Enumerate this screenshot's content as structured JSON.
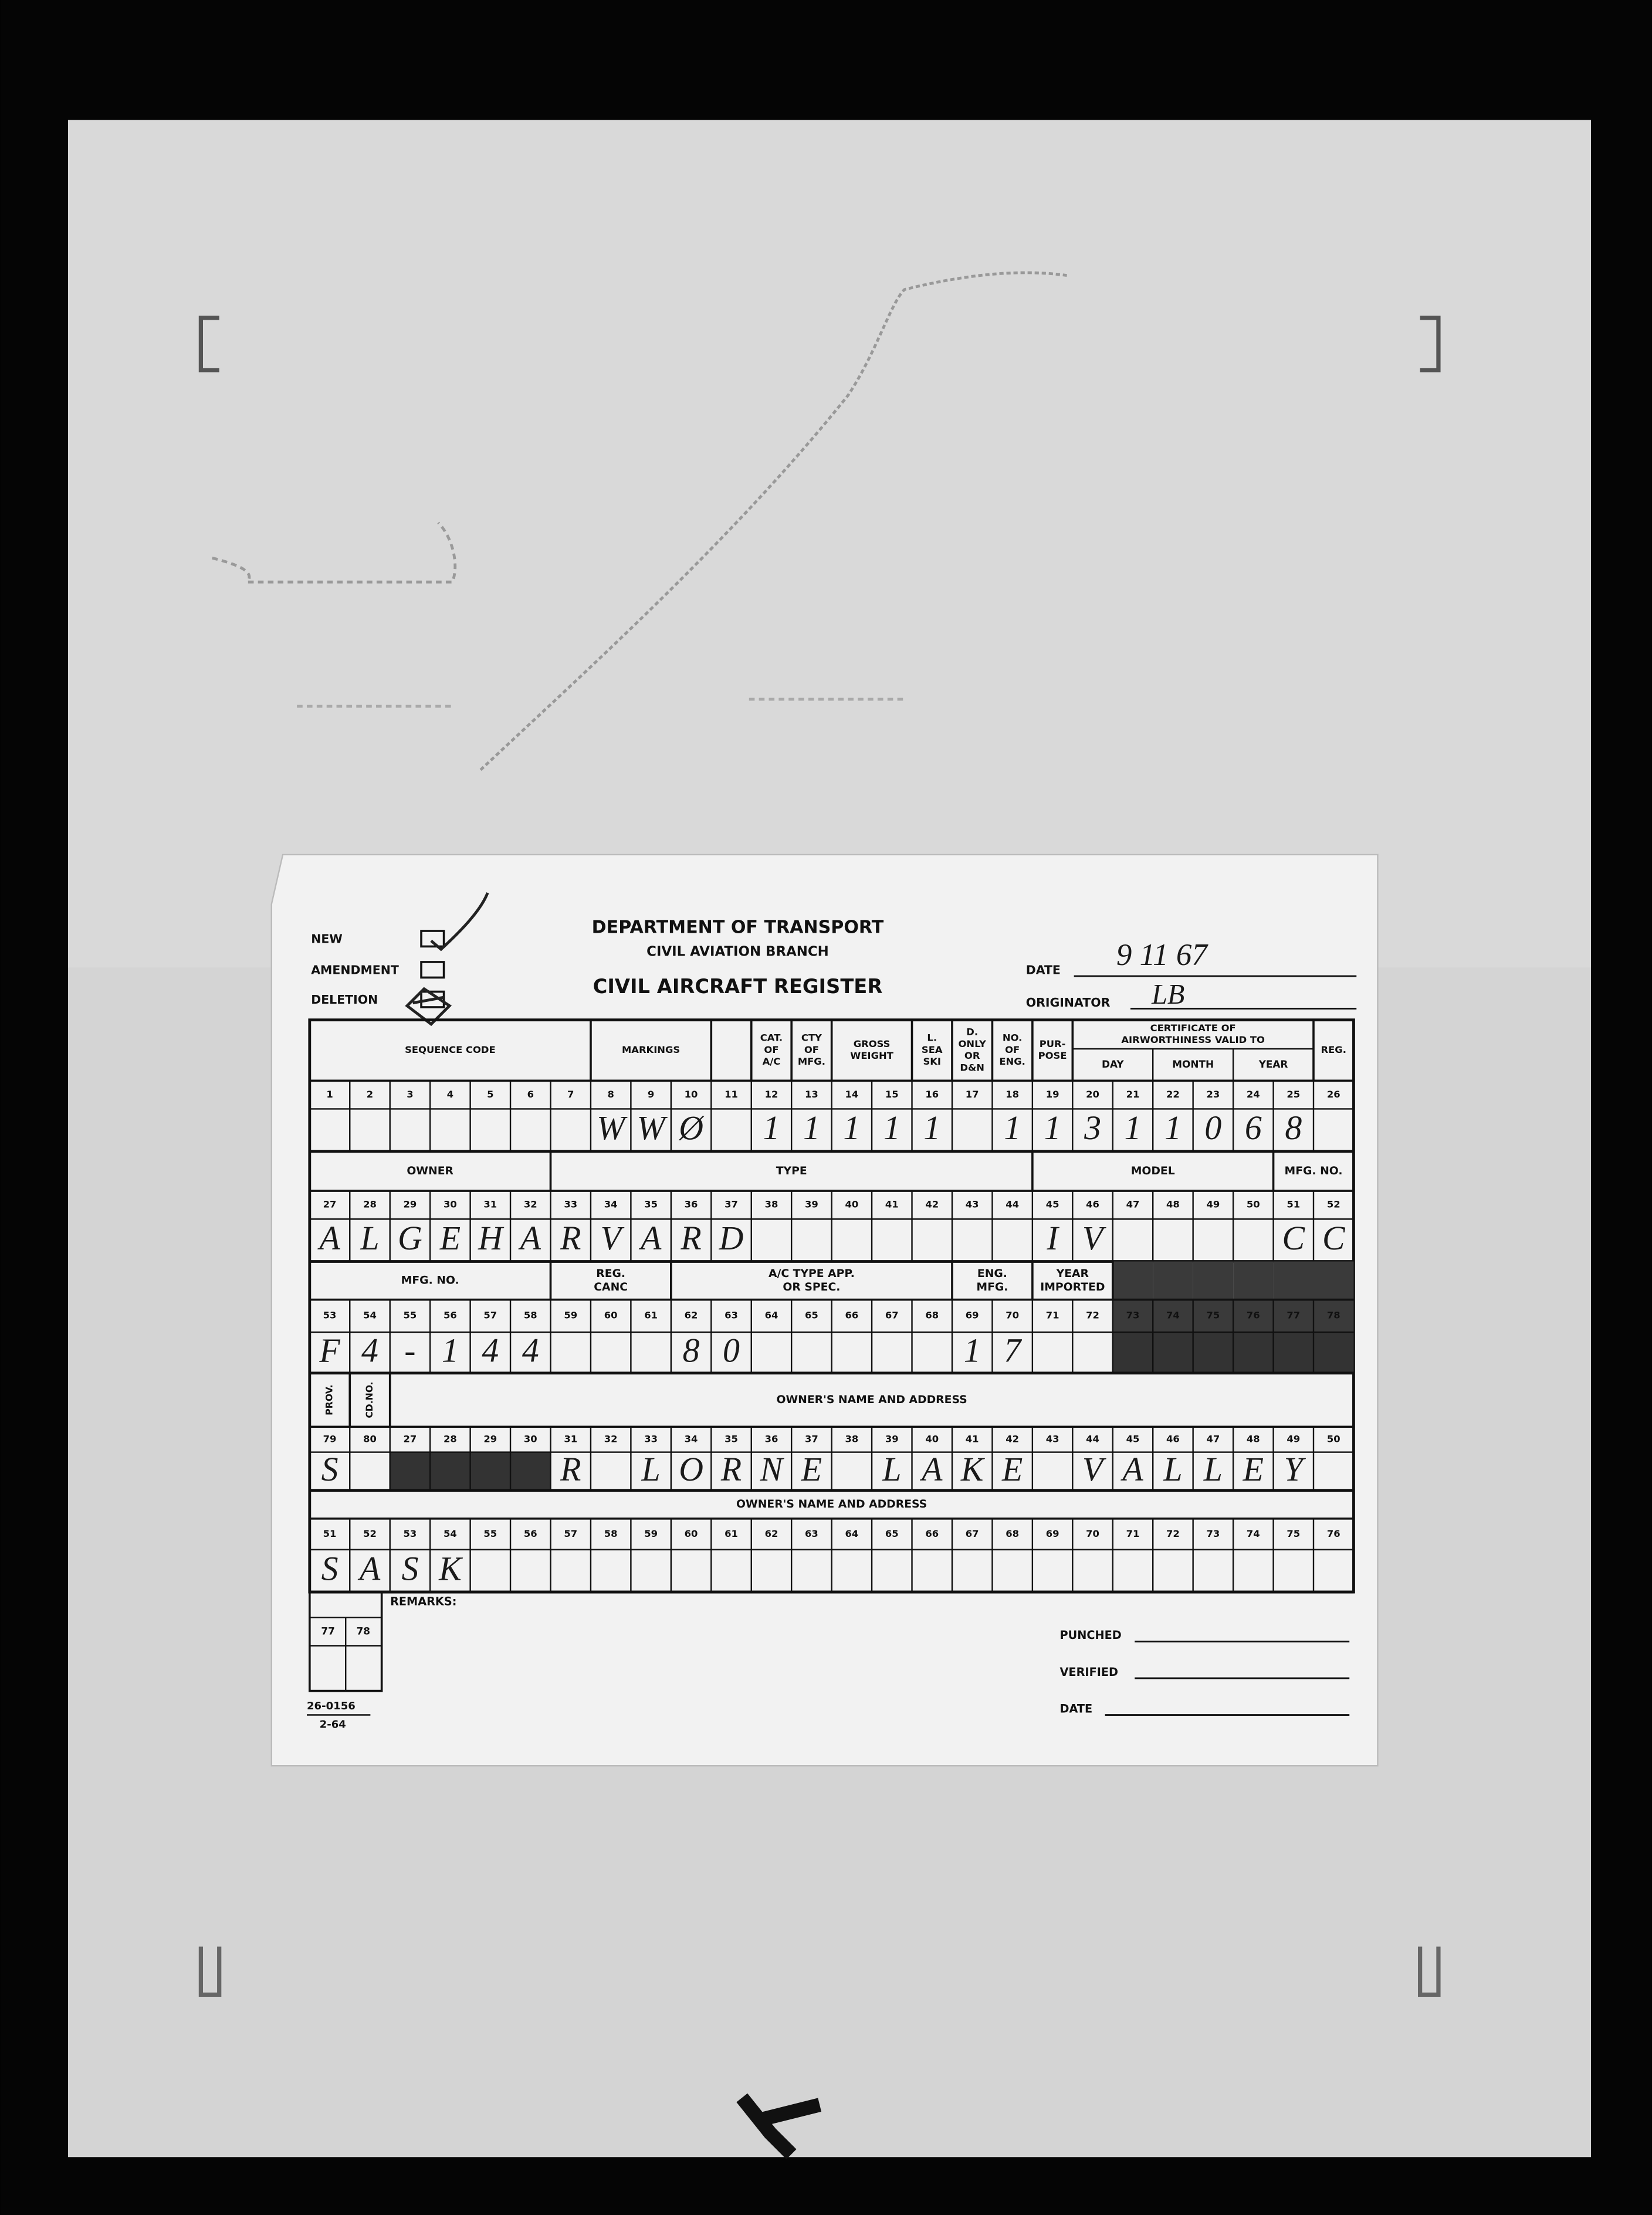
{
  "form": {
    "checkboxes": [
      "NEW",
      "AMENDMENT",
      "DELETION"
    ],
    "title": [
      "DEPARTMENT OF TRANSPORT",
      "CIVIL AVIATION BRANCH"
    ],
    "heading": "CIVIL AIRCRAFT REGISTER",
    "date_label": "DATE",
    "date_value": "9 11 67",
    "originator_label": "ORIGINATOR",
    "originator_value": "LB"
  },
  "sections": [
    {
      "headers": [
        {
          "lines": [
            "SEQUENCE CODE"
          ]
        },
        {
          "lines": [
            "MARKINGS"
          ]
        },
        {
          "lines": null
        },
        {
          "lines": [
            "CAT.",
            "OF",
            "A/C"
          ]
        },
        {
          "lines": [
            "CTY",
            "OF",
            "MFG."
          ]
        },
        {
          "lines": [
            "GROSS",
            "WEIGHT"
          ]
        },
        {
          "lines": [
            "L.",
            "SEA",
            "SKI"
          ]
        },
        {
          "lines": [
            "D.",
            "ONLY",
            "OR",
            "D&N"
          ]
        },
        {
          "lines": [
            "NO.",
            "OF",
            "ENG."
          ]
        },
        {
          "lines": [
            "PUR-",
            "POSE"
          ]
        },
        {
          "lines": [
            "CERTIFICATE OF",
            "AIRWORTHINESS VALID TO"
          ],
          "sub": [
            "DAY",
            "MONTH",
            "YEAR"
          ]
        },
        {
          "lines": [
            "REG."
          ]
        }
      ],
      "numbers": [
        1,
        2,
        3,
        4,
        5,
        6,
        7,
        8,
        9,
        10,
        11,
        12,
        13,
        14,
        15,
        16,
        17,
        18,
        19,
        20,
        21,
        22,
        23,
        24,
        25,
        26
      ],
      "entries": [
        null,
        null,
        null,
        null,
        null,
        null,
        null,
        "W",
        "W",
        "Ø",
        null,
        "1",
        "1",
        "1",
        "1",
        "1",
        null,
        "1",
        "1",
        "3",
        "1",
        "1",
        "0",
        "6",
        "8",
        null
      ]
    },
    {
      "headers": [
        {
          "lines": [
            "OWNER"
          ]
        },
        {
          "lines": [
            "TYPE"
          ]
        },
        {
          "lines": [
            "MODEL"
          ]
        },
        {
          "lines": [
            "MFG. NO."
          ]
        }
      ],
      "numbers": [
        27,
        28,
        29,
        30,
        31,
        32,
        33,
        34,
        35,
        36,
        37,
        38,
        39,
        40,
        41,
        42,
        43,
        44,
        45,
        46,
        47,
        48,
        49,
        50,
        51,
        52
      ],
      "entries": [
        "A",
        "L",
        "G",
        "E",
        "H",
        "A",
        "R",
        "V",
        "A",
        "R",
        "D",
        null,
        null,
        null,
        null,
        null,
        null,
        null,
        "I",
        "V",
        null,
        null,
        null,
        null,
        "C",
        "C"
      ]
    },
    {
      "headers": [
        {
          "lines": [
            "MFG. NO."
          ]
        },
        {
          "lines": [
            "REG.",
            "CANC"
          ]
        },
        {
          "lines": [
            "A/C TYPE APP.",
            "OR SPEC."
          ]
        },
        {
          "lines": [
            "ENG.",
            "MFG."
          ]
        },
        {
          "lines": [
            "YEAR",
            "IMPORTED"
          ]
        },
        {
          "lines": null
        }
      ],
      "numbers": [
        53,
        54,
        55,
        56,
        57,
        58,
        59,
        60,
        61,
        62,
        63,
        64,
        65,
        66,
        67,
        68,
        69,
        70,
        71,
        72,
        73,
        74,
        75,
        76,
        77,
        78
      ],
      "entries": [
        "F",
        "4",
        "-",
        "1",
        "4",
        "4",
        null,
        null,
        null,
        "8",
        "0",
        null,
        null,
        null,
        null,
        null,
        "1",
        "7",
        null,
        null,
        null,
        null,
        null,
        null,
        null,
        null
      ]
    },
    {
      "headers": [
        {
          "lines": [
            "PROV."
          ]
        },
        {
          "lines": [
            "CD.NO."
          ]
        },
        {
          "lines": [
            "OWNER'S NAME AND ADDRESS"
          ]
        }
      ],
      "numbers": [
        79,
        80,
        27,
        28,
        29,
        30,
        31,
        32,
        33,
        34,
        35,
        36,
        37,
        38,
        39,
        40,
        41,
        42,
        43,
        44,
        45,
        46,
        47,
        48,
        49,
        50
      ],
      "entries": [
        "S",
        null,
        null,
        null,
        null,
        null,
        "R",
        null,
        "L",
        "O",
        "R",
        "N",
        "E",
        null,
        "L",
        "A",
        "K",
        "E",
        null,
        "V",
        "A",
        "L",
        "L",
        "E",
        "Y",
        null
      ]
    },
    {
      "headers": [
        {
          "lines": [
            "OWNER'S NAME AND ADDRESS"
          ]
        }
      ],
      "numbers": [
        51,
        52,
        53,
        54,
        55,
        56,
        57,
        58,
        59,
        60,
        61,
        62,
        63,
        64,
        65,
        66,
        67,
        68,
        69,
        70,
        71,
        72,
        73,
        74,
        75,
        76
      ],
      "entries": [
        "S",
        "A",
        "S",
        "K",
        null,
        null,
        null,
        null,
        null,
        null,
        null,
        null,
        null,
        null,
        null,
        null,
        null,
        null,
        null,
        null,
        null,
        null,
        null,
        null,
        null,
        null
      ]
    }
  ],
  "remarks": {
    "label": "REMARKS:",
    "numbers": [
      77,
      78
    ]
  },
  "signoff": [
    "PUNCHED",
    "VERIFIED",
    "DATE"
  ],
  "form_number": [
    "26-0156",
    "2-64"
  ]
}
